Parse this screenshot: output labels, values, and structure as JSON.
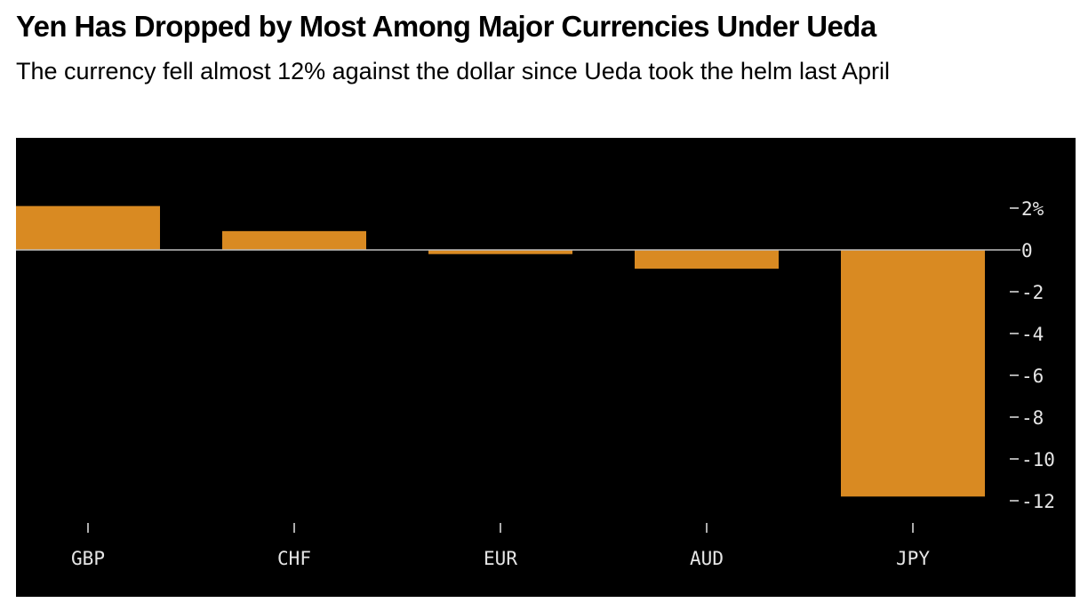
{
  "title": "Yen Has Dropped by Most Among Major Currencies Under Ueda",
  "subtitle": "The currency fell almost 12% against the dollar since Ueda took the helm last April",
  "colors": {
    "bar": "#d98a22",
    "panel_background": "#000000",
    "zero_line": "#bfbfbf",
    "tick": "#e6e6e6"
  },
  "chart_data": {
    "type": "bar",
    "categories": [
      "GBP",
      "CHF",
      "EUR",
      "AUD",
      "JPY"
    ],
    "values": [
      2.1,
      0.9,
      -0.2,
      -0.9,
      -11.8
    ],
    "title": "Yen Has Dropped by Most Among Major Currencies Under Ueda",
    "subtitle": "The currency fell almost 12% against the dollar since Ueda took the helm last April",
    "xlabel": "",
    "ylabel": "",
    "ylim": [
      -12,
      2
    ],
    "y_ticks": [
      {
        "value": 2,
        "label": "2%"
      },
      {
        "value": 0,
        "label": "0"
      },
      {
        "value": -2,
        "label": "-2"
      },
      {
        "value": -4,
        "label": "-4"
      },
      {
        "value": -6,
        "label": "-6"
      },
      {
        "value": -8,
        "label": "-8"
      },
      {
        "value": -10,
        "label": "-10"
      },
      {
        "value": -12,
        "label": "-12"
      }
    ],
    "y_axis_position": "right",
    "grid": false,
    "legend": "none"
  }
}
